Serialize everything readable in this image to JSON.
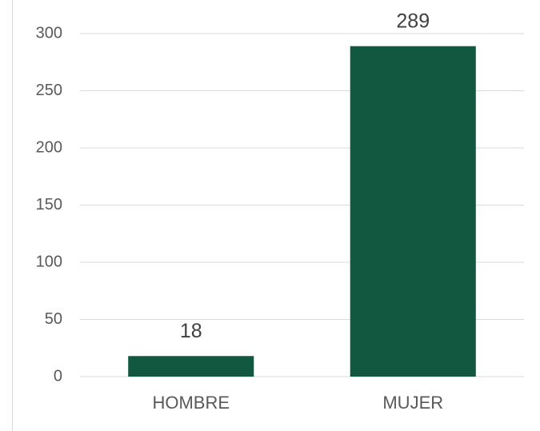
{
  "chart_data": {
    "type": "bar",
    "categories": [
      "HOMBRE",
      "MUJER"
    ],
    "values": [
      18,
      289
    ],
    "color": "#12573f",
    "ylim": [
      0,
      300
    ],
    "yticks": [
      0,
      50,
      100,
      150,
      200,
      250,
      300
    ],
    "grid": true
  }
}
